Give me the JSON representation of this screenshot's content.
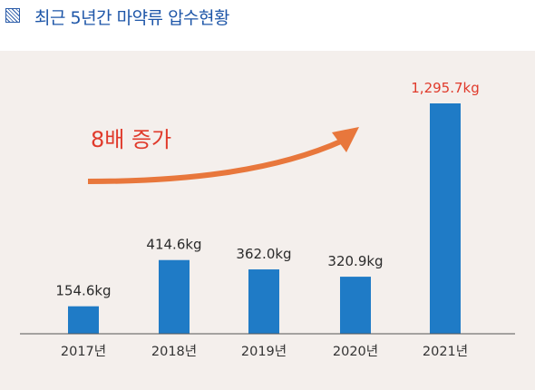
{
  "header": {
    "title": "최근 5년간 마약류 압수현황",
    "icon": "hatched-square-icon"
  },
  "colors": {
    "bar": "#1f7bc6",
    "highlight": "#e03a2b",
    "arrow": "#e8773c",
    "panel_bg": "#f4efec",
    "title": "#1e56a8"
  },
  "chart_data": {
    "type": "bar",
    "title": "최근 5년간 마약류 압수현황",
    "categories": [
      "2017년",
      "2018년",
      "2019년",
      "2020년",
      "2021년"
    ],
    "values": [
      154.6,
      414.6,
      362.0,
      320.9,
      1295.7
    ],
    "value_labels": [
      "154.6kg",
      "414.6kg",
      "362.0kg",
      "320.9kg",
      "1,295.7kg"
    ],
    "unit": "kg",
    "ylim": [
      0,
      1295.7
    ],
    "grid": false,
    "legend": "none",
    "highlight_index": 4,
    "annotation": {
      "text": "8배 증가",
      "type": "curved-arrow"
    }
  }
}
